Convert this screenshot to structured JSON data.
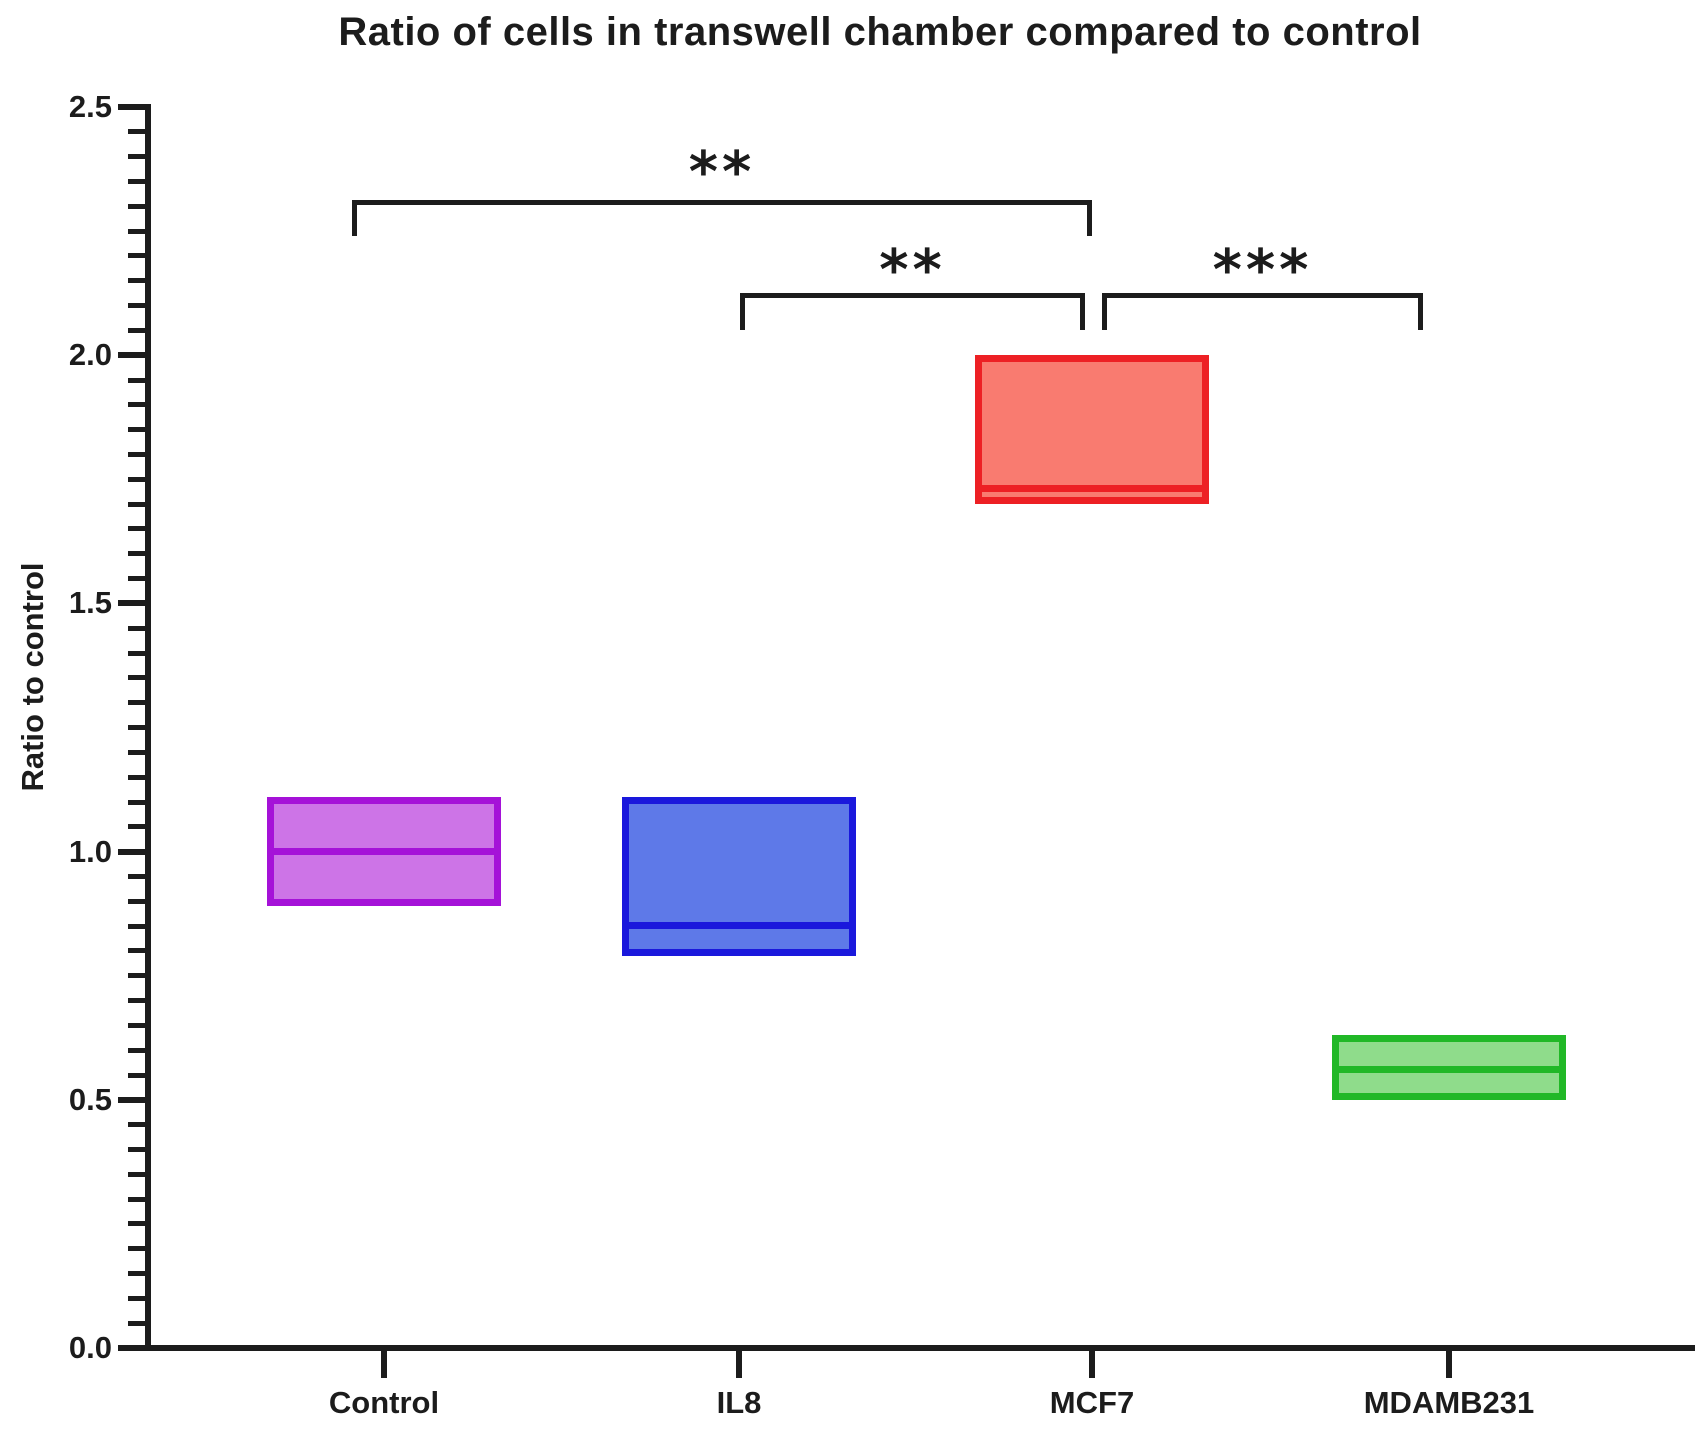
{
  "chart_data": {
    "type": "box",
    "title": "Ratio of cells in transwell chamber compared to control",
    "ylabel": "Ratio to control",
    "xlabel": "",
    "ylim": [
      0.0,
      2.5
    ],
    "yticks": [
      0.0,
      0.5,
      1.0,
      1.5,
      2.0,
      2.5
    ],
    "ytick_labels": [
      "0.0",
      "0.5",
      "1.0",
      "1.5",
      "2.0",
      "2.5"
    ],
    "minor_tick_step": 0.05,
    "grid": "off",
    "legend": "none",
    "categories": [
      "Control",
      "IL8",
      "MCF7",
      "MDAMB231"
    ],
    "series": [
      {
        "category": "Control",
        "min": 0.89,
        "median": 1.0,
        "max": 1.11,
        "fill": "#cd74e7",
        "border": "#a512d8"
      },
      {
        "category": "IL8",
        "min": 0.79,
        "median": 0.85,
        "max": 1.11,
        "fill": "#5e79e8",
        "border": "#1a18dc"
      },
      {
        "category": "MCF7",
        "min": 1.7,
        "median": 1.73,
        "max": 2.0,
        "fill": "#f97b70",
        "border": "#ed2024"
      },
      {
        "category": "MDAMB231",
        "min": 0.5,
        "median": 0.56,
        "max": 0.63,
        "fill": "#8fdc8b",
        "border": "#21b827"
      }
    ],
    "significance": [
      {
        "from": "Control",
        "to": "MCF7",
        "label": "**",
        "tier": "upper"
      },
      {
        "from": "IL8",
        "to": "MCF7",
        "label": "**",
        "tier": "lower"
      },
      {
        "from": "MCF7",
        "to": "MDAMB231",
        "label": "***",
        "tier": "lower"
      }
    ],
    "axis_color": "#1c1c1c",
    "background": "#ffffff"
  }
}
